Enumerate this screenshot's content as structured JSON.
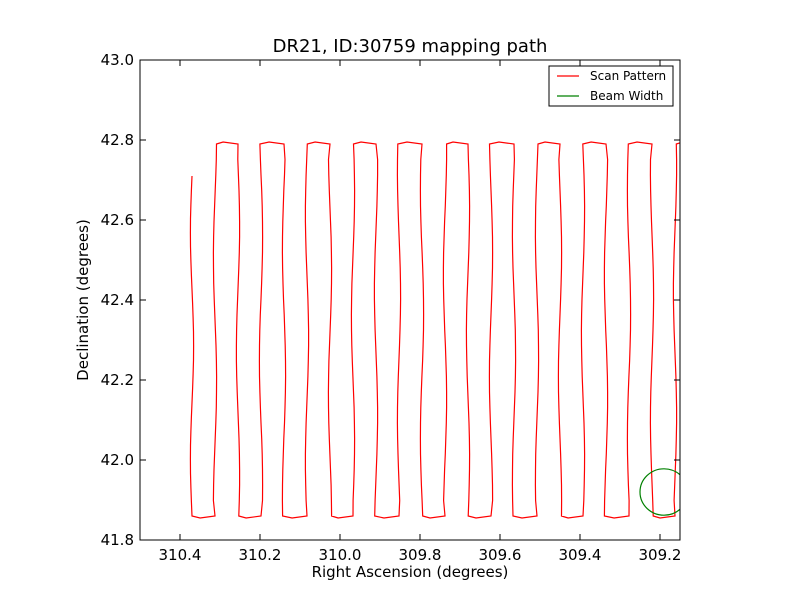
{
  "chart_data": {
    "type": "line",
    "title": "DR21, ID:30759 mapping path",
    "xlabel": "Right Ascension (degrees)",
    "ylabel": "Declination (degrees)",
    "xlim": [
      310.5,
      309.15
    ],
    "ylim": [
      41.8,
      43.0
    ],
    "x_inverted": true,
    "xticks": [
      "310.4",
      "310.2",
      "310.0",
      "309.8",
      "309.6",
      "309.4",
      "309.2"
    ],
    "xtick_values": [
      310.4,
      310.2,
      310.0,
      309.8,
      309.6,
      309.4,
      309.2
    ],
    "yticks": [
      "41.8",
      "42.0",
      "42.2",
      "42.4",
      "42.6",
      "42.8",
      "43.0"
    ],
    "ytick_values": [
      41.8,
      42.0,
      42.2,
      42.4,
      42.6,
      42.8,
      43.0
    ],
    "grid": false,
    "legend_position": "top-right",
    "series": [
      {
        "name": "Scan Pattern",
        "color": "#ff0000",
        "kind": "raster-scan",
        "ra_start": 310.37,
        "ra_step": -0.0575,
        "legs": 25,
        "dec_low": 41.86,
        "dec_high": 42.79,
        "start_dec": 42.71
      },
      {
        "name": "Beam Width",
        "color": "#008000",
        "kind": "circle",
        "center_ra": 309.19,
        "center_dec": 41.92,
        "radius_ra": 0.06,
        "radius_dec": 0.058
      }
    ]
  }
}
